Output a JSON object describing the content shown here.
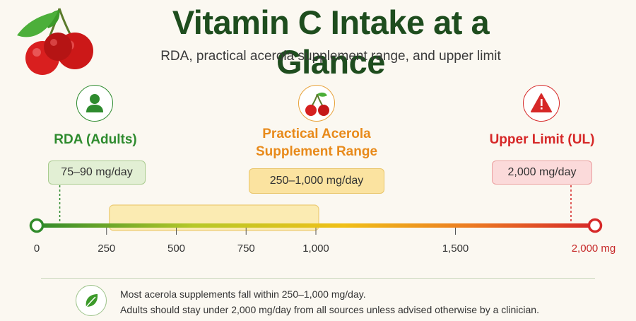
{
  "header": {
    "title": "Vitamin C Intake at a Glance",
    "subtitle": "RDA, practical acerola supplement range, and upper limit",
    "logo_icon": "cherries-icon"
  },
  "markers": {
    "rda": {
      "label": "RDA (Adults)",
      "value": "75–90 mg/day",
      "icon": "person-icon",
      "color": "#2e8b2e",
      "range_mg": [
        75,
        90
      ]
    },
    "acerola": {
      "label_line1": "Practical Acerola",
      "label_line2": "Supplement Range",
      "value": "250–1,000 mg/day",
      "icon": "cherry-icon",
      "color": "#e88a1a",
      "range_mg": [
        250,
        1000
      ]
    },
    "ul": {
      "label": "Upper Limit (UL)",
      "value": "2,000 mg/day",
      "icon": "warning-icon",
      "color": "#d62828",
      "value_mg": 2000
    }
  },
  "scale": {
    "min": 0,
    "max": 2000,
    "ticks": [
      {
        "value": 0,
        "label": "0"
      },
      {
        "value": 250,
        "label": "250"
      },
      {
        "value": 500,
        "label": "500"
      },
      {
        "value": 750,
        "label": "750"
      },
      {
        "value": 1000,
        "label": "1,000"
      },
      {
        "value": 1500,
        "label": "1,500"
      },
      {
        "value": 2000,
        "label": "2,000 mg"
      }
    ]
  },
  "footer": {
    "icon": "leaf-icon",
    "line1": "Most acerola supplements fall within 250–1,000 mg/day.",
    "line2": "Adults should stay under 2,000 mg/day from all sources unless advised otherwise by a clinician."
  }
}
